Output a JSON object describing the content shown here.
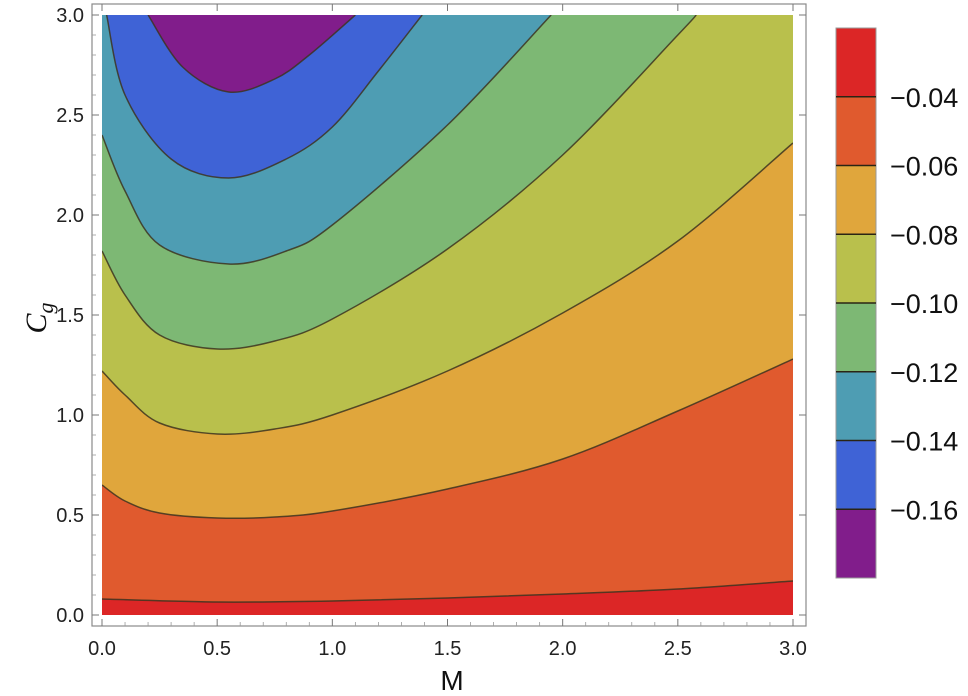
{
  "chart_data": {
    "type": "contour",
    "xlabel": "M",
    "ylabel": {
      "main": "C",
      "sub": "g"
    },
    "xlim": [
      0,
      3
    ],
    "ylim": [
      0,
      3
    ],
    "x_ticks": [
      "0.0",
      "0.5",
      "1.0",
      "1.5",
      "2.0",
      "2.5",
      "3.0"
    ],
    "y_ticks": [
      "0.0",
      "0.5",
      "1.0",
      "1.5",
      "2.0",
      "2.5",
      "3.0"
    ],
    "contour_levels": [
      -0.04,
      -0.06,
      -0.08,
      -0.1,
      -0.12,
      -0.14,
      -0.16
    ],
    "colorbar": {
      "labels": [
        "−0.04",
        "−0.06",
        "−0.08",
        "−0.10",
        "−0.12",
        "−0.14",
        "−0.16"
      ],
      "band_colors": [
        "#dc2626",
        "#e05a2e",
        "#e0a63c",
        "#b9c04c",
        "#7db874",
        "#4e9db3",
        "#3f63d6",
        "#811d8b"
      ]
    },
    "contours": [
      {
        "level": -0.04,
        "points": [
          [
            0.0,
            0.08
          ],
          [
            0.5,
            0.065
          ],
          [
            1.0,
            0.07
          ],
          [
            1.5,
            0.085
          ],
          [
            2.0,
            0.105
          ],
          [
            2.5,
            0.13
          ],
          [
            3.0,
            0.17
          ]
        ]
      },
      {
        "level": -0.06,
        "points": [
          [
            0.0,
            0.65
          ],
          [
            0.1,
            0.57
          ],
          [
            0.25,
            0.51
          ],
          [
            0.5,
            0.485
          ],
          [
            0.75,
            0.49
          ],
          [
            1.0,
            0.52
          ],
          [
            1.5,
            0.63
          ],
          [
            2.0,
            0.78
          ],
          [
            2.5,
            1.02
          ],
          [
            3.0,
            1.28
          ]
        ]
      },
      {
        "level": -0.08,
        "points": [
          [
            0.0,
            1.22
          ],
          [
            0.1,
            1.1
          ],
          [
            0.25,
            0.96
          ],
          [
            0.5,
            0.905
          ],
          [
            0.75,
            0.93
          ],
          [
            1.0,
            1.0
          ],
          [
            1.5,
            1.22
          ],
          [
            2.0,
            1.51
          ],
          [
            2.5,
            1.87
          ],
          [
            3.0,
            2.36
          ]
        ]
      },
      {
        "level": -0.1,
        "points": [
          [
            0.0,
            1.82
          ],
          [
            0.1,
            1.6
          ],
          [
            0.25,
            1.4
          ],
          [
            0.5,
            1.33
          ],
          [
            0.75,
            1.37
          ],
          [
            1.0,
            1.48
          ],
          [
            1.5,
            1.83
          ],
          [
            2.0,
            2.3
          ],
          [
            2.5,
            2.9
          ],
          [
            2.58,
            3.0
          ]
        ]
      },
      {
        "level": -0.12,
        "points": [
          [
            0.0,
            2.4
          ],
          [
            0.1,
            2.12
          ],
          [
            0.25,
            1.85
          ],
          [
            0.55,
            1.755
          ],
          [
            0.8,
            1.82
          ],
          [
            1.0,
            1.95
          ],
          [
            1.5,
            2.45
          ],
          [
            1.95,
            3.0
          ]
        ]
      },
      {
        "level": -0.14,
        "points": [
          [
            0.02,
            3.0
          ],
          [
            0.1,
            2.6
          ],
          [
            0.3,
            2.28
          ],
          [
            0.55,
            2.185
          ],
          [
            0.8,
            2.28
          ],
          [
            1.0,
            2.44
          ],
          [
            1.2,
            2.72
          ],
          [
            1.39,
            3.0
          ]
        ]
      },
      {
        "level": -0.16,
        "points": [
          [
            0.2,
            3.0
          ],
          [
            0.35,
            2.74
          ],
          [
            0.55,
            2.615
          ],
          [
            0.75,
            2.68
          ],
          [
            0.9,
            2.8
          ],
          [
            1.1,
            3.0
          ]
        ]
      }
    ]
  }
}
